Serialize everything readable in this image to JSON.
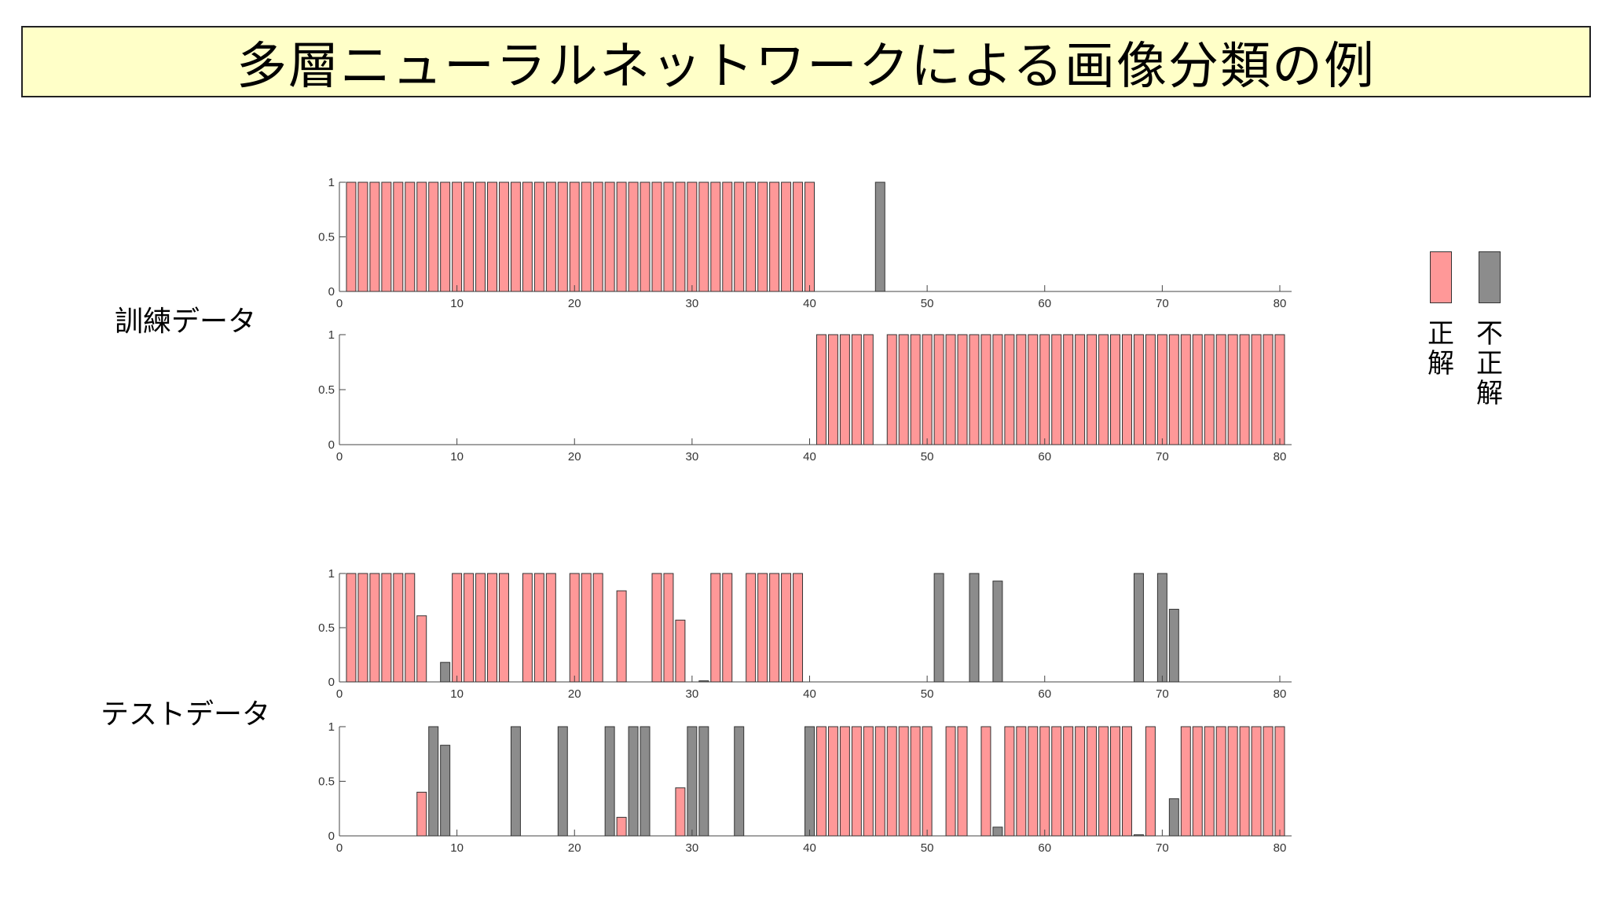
{
  "title": "多層ニューラルネットワークによる画像分類の例",
  "groups": {
    "train": "訓練データ",
    "test": "テストデータ"
  },
  "legend": {
    "correct": "正解",
    "incorrect": "不正解",
    "correct_color": "#ff9898",
    "incorrect_color": "#8c8c8c"
  },
  "chart_data": [
    {
      "type": "bar",
      "group": "訓練データ",
      "xlim": [
        0,
        81
      ],
      "ylim": [
        0,
        1
      ],
      "xticks": [
        0,
        10,
        20,
        30,
        40,
        50,
        60,
        70,
        80
      ],
      "yticks": [
        "0",
        "0.5",
        "1"
      ],
      "bars": [
        {
          "x": 1,
          "y": 1,
          "c": "correct"
        },
        {
          "x": 2,
          "y": 1,
          "c": "correct"
        },
        {
          "x": 3,
          "y": 1,
          "c": "correct"
        },
        {
          "x": 4,
          "y": 1,
          "c": "correct"
        },
        {
          "x": 5,
          "y": 1,
          "c": "correct"
        },
        {
          "x": 6,
          "y": 1,
          "c": "correct"
        },
        {
          "x": 7,
          "y": 1,
          "c": "correct"
        },
        {
          "x": 8,
          "y": 1,
          "c": "correct"
        },
        {
          "x": 9,
          "y": 1,
          "c": "correct"
        },
        {
          "x": 10,
          "y": 1,
          "c": "correct"
        },
        {
          "x": 11,
          "y": 1,
          "c": "correct"
        },
        {
          "x": 12,
          "y": 1,
          "c": "correct"
        },
        {
          "x": 13,
          "y": 1,
          "c": "correct"
        },
        {
          "x": 14,
          "y": 1,
          "c": "correct"
        },
        {
          "x": 15,
          "y": 1,
          "c": "correct"
        },
        {
          "x": 16,
          "y": 1,
          "c": "correct"
        },
        {
          "x": 17,
          "y": 1,
          "c": "correct"
        },
        {
          "x": 18,
          "y": 1,
          "c": "correct"
        },
        {
          "x": 19,
          "y": 1,
          "c": "correct"
        },
        {
          "x": 20,
          "y": 1,
          "c": "correct"
        },
        {
          "x": 21,
          "y": 1,
          "c": "correct"
        },
        {
          "x": 22,
          "y": 1,
          "c": "correct"
        },
        {
          "x": 23,
          "y": 1,
          "c": "correct"
        },
        {
          "x": 24,
          "y": 1,
          "c": "correct"
        },
        {
          "x": 25,
          "y": 1,
          "c": "correct"
        },
        {
          "x": 26,
          "y": 1,
          "c": "correct"
        },
        {
          "x": 27,
          "y": 1,
          "c": "correct"
        },
        {
          "x": 28,
          "y": 1,
          "c": "correct"
        },
        {
          "x": 29,
          "y": 1,
          "c": "correct"
        },
        {
          "x": 30,
          "y": 1,
          "c": "correct"
        },
        {
          "x": 31,
          "y": 1,
          "c": "correct"
        },
        {
          "x": 32,
          "y": 1,
          "c": "correct"
        },
        {
          "x": 33,
          "y": 1,
          "c": "correct"
        },
        {
          "x": 34,
          "y": 1,
          "c": "correct"
        },
        {
          "x": 35,
          "y": 1,
          "c": "correct"
        },
        {
          "x": 36,
          "y": 1,
          "c": "correct"
        },
        {
          "x": 37,
          "y": 1,
          "c": "correct"
        },
        {
          "x": 38,
          "y": 1,
          "c": "correct"
        },
        {
          "x": 39,
          "y": 1,
          "c": "correct"
        },
        {
          "x": 40,
          "y": 1,
          "c": "correct"
        },
        {
          "x": 46,
          "y": 1,
          "c": "incorrect"
        }
      ]
    },
    {
      "type": "bar",
      "group": "訓練データ",
      "xlim": [
        0,
        81
      ],
      "ylim": [
        0,
        1
      ],
      "xticks": [
        0,
        10,
        20,
        30,
        40,
        50,
        60,
        70,
        80
      ],
      "yticks": [
        "0",
        "0.5",
        "1"
      ],
      "bars": [
        {
          "x": 41,
          "y": 1,
          "c": "correct"
        },
        {
          "x": 42,
          "y": 1,
          "c": "correct"
        },
        {
          "x": 43,
          "y": 1,
          "c": "correct"
        },
        {
          "x": 44,
          "y": 1,
          "c": "correct"
        },
        {
          "x": 45,
          "y": 1,
          "c": "correct"
        },
        {
          "x": 47,
          "y": 1,
          "c": "correct"
        },
        {
          "x": 48,
          "y": 1,
          "c": "correct"
        },
        {
          "x": 49,
          "y": 1,
          "c": "correct"
        },
        {
          "x": 50,
          "y": 1,
          "c": "correct"
        },
        {
          "x": 51,
          "y": 1,
          "c": "correct"
        },
        {
          "x": 52,
          "y": 1,
          "c": "correct"
        },
        {
          "x": 53,
          "y": 1,
          "c": "correct"
        },
        {
          "x": 54,
          "y": 1,
          "c": "correct"
        },
        {
          "x": 55,
          "y": 1,
          "c": "correct"
        },
        {
          "x": 56,
          "y": 1,
          "c": "correct"
        },
        {
          "x": 57,
          "y": 1,
          "c": "correct"
        },
        {
          "x": 58,
          "y": 1,
          "c": "correct"
        },
        {
          "x": 59,
          "y": 1,
          "c": "correct"
        },
        {
          "x": 60,
          "y": 1,
          "c": "correct"
        },
        {
          "x": 61,
          "y": 1,
          "c": "correct"
        },
        {
          "x": 62,
          "y": 1,
          "c": "correct"
        },
        {
          "x": 63,
          "y": 1,
          "c": "correct"
        },
        {
          "x": 64,
          "y": 1,
          "c": "correct"
        },
        {
          "x": 65,
          "y": 1,
          "c": "correct"
        },
        {
          "x": 66,
          "y": 1,
          "c": "correct"
        },
        {
          "x": 67,
          "y": 1,
          "c": "correct"
        },
        {
          "x": 68,
          "y": 1,
          "c": "correct"
        },
        {
          "x": 69,
          "y": 1,
          "c": "correct"
        },
        {
          "x": 70,
          "y": 1,
          "c": "correct"
        },
        {
          "x": 71,
          "y": 1,
          "c": "correct"
        },
        {
          "x": 72,
          "y": 1,
          "c": "correct"
        },
        {
          "x": 73,
          "y": 1,
          "c": "correct"
        },
        {
          "x": 74,
          "y": 1,
          "c": "correct"
        },
        {
          "x": 75,
          "y": 1,
          "c": "correct"
        },
        {
          "x": 76,
          "y": 1,
          "c": "correct"
        },
        {
          "x": 77,
          "y": 1,
          "c": "correct"
        },
        {
          "x": 78,
          "y": 1,
          "c": "correct"
        },
        {
          "x": 79,
          "y": 1,
          "c": "correct"
        },
        {
          "x": 80,
          "y": 1,
          "c": "correct"
        }
      ]
    },
    {
      "type": "bar",
      "group": "テストデータ",
      "xlim": [
        0,
        81
      ],
      "ylim": [
        0,
        1
      ],
      "xticks": [
        0,
        10,
        20,
        30,
        40,
        50,
        60,
        70,
        80
      ],
      "yticks": [
        "0",
        "0.5",
        "1"
      ],
      "bars": [
        {
          "x": 1,
          "y": 1,
          "c": "correct"
        },
        {
          "x": 2,
          "y": 1,
          "c": "correct"
        },
        {
          "x": 3,
          "y": 1,
          "c": "correct"
        },
        {
          "x": 4,
          "y": 1,
          "c": "correct"
        },
        {
          "x": 5,
          "y": 1,
          "c": "correct"
        },
        {
          "x": 6,
          "y": 1,
          "c": "correct"
        },
        {
          "x": 7,
          "y": 0.61,
          "c": "correct"
        },
        {
          "x": 9,
          "y": 0.18,
          "c": "incorrect"
        },
        {
          "x": 10,
          "y": 1,
          "c": "correct"
        },
        {
          "x": 11,
          "y": 1,
          "c": "correct"
        },
        {
          "x": 12,
          "y": 1,
          "c": "correct"
        },
        {
          "x": 13,
          "y": 1,
          "c": "correct"
        },
        {
          "x": 14,
          "y": 1,
          "c": "correct"
        },
        {
          "x": 16,
          "y": 1,
          "c": "correct"
        },
        {
          "x": 17,
          "y": 1,
          "c": "correct"
        },
        {
          "x": 18,
          "y": 1,
          "c": "correct"
        },
        {
          "x": 20,
          "y": 1,
          "c": "correct"
        },
        {
          "x": 21,
          "y": 1,
          "c": "correct"
        },
        {
          "x": 22,
          "y": 1,
          "c": "correct"
        },
        {
          "x": 24,
          "y": 0.84,
          "c": "correct"
        },
        {
          "x": 27,
          "y": 1,
          "c": "correct"
        },
        {
          "x": 28,
          "y": 1,
          "c": "correct"
        },
        {
          "x": 29,
          "y": 0.57,
          "c": "correct"
        },
        {
          "x": 31,
          "y": 0.01,
          "c": "incorrect"
        },
        {
          "x": 32,
          "y": 1,
          "c": "correct"
        },
        {
          "x": 33,
          "y": 1,
          "c": "correct"
        },
        {
          "x": 35,
          "y": 1,
          "c": "correct"
        },
        {
          "x": 36,
          "y": 1,
          "c": "correct"
        },
        {
          "x": 37,
          "y": 1,
          "c": "correct"
        },
        {
          "x": 38,
          "y": 1,
          "c": "correct"
        },
        {
          "x": 39,
          "y": 1,
          "c": "correct"
        },
        {
          "x": 51,
          "y": 1,
          "c": "incorrect"
        },
        {
          "x": 54,
          "y": 1,
          "c": "incorrect"
        },
        {
          "x": 56,
          "y": 0.93,
          "c": "incorrect"
        },
        {
          "x": 68,
          "y": 1,
          "c": "incorrect"
        },
        {
          "x": 70,
          "y": 1,
          "c": "incorrect"
        },
        {
          "x": 71,
          "y": 0.67,
          "c": "incorrect"
        }
      ]
    },
    {
      "type": "bar",
      "group": "テストデータ",
      "xlim": [
        0,
        81
      ],
      "ylim": [
        0,
        1
      ],
      "xticks": [
        0,
        10,
        20,
        30,
        40,
        50,
        60,
        70,
        80
      ],
      "yticks": [
        "0",
        "0.5",
        "1"
      ],
      "bars": [
        {
          "x": 7,
          "y": 0.4,
          "c": "correct"
        },
        {
          "x": 8,
          "y": 1,
          "c": "incorrect"
        },
        {
          "x": 9,
          "y": 0.83,
          "c": "incorrect"
        },
        {
          "x": 15,
          "y": 1,
          "c": "incorrect"
        },
        {
          "x": 19,
          "y": 1,
          "c": "incorrect"
        },
        {
          "x": 23,
          "y": 1,
          "c": "incorrect"
        },
        {
          "x": 24,
          "y": 0.17,
          "c": "correct"
        },
        {
          "x": 25,
          "y": 1,
          "c": "incorrect"
        },
        {
          "x": 26,
          "y": 1,
          "c": "incorrect"
        },
        {
          "x": 29,
          "y": 0.44,
          "c": "correct"
        },
        {
          "x": 30,
          "y": 1,
          "c": "incorrect"
        },
        {
          "x": 31,
          "y": 1,
          "c": "incorrect"
        },
        {
          "x": 34,
          "y": 1,
          "c": "incorrect"
        },
        {
          "x": 40,
          "y": 1,
          "c": "incorrect"
        },
        {
          "x": 41,
          "y": 1,
          "c": "correct"
        },
        {
          "x": 42,
          "y": 1,
          "c": "correct"
        },
        {
          "x": 43,
          "y": 1,
          "c": "correct"
        },
        {
          "x": 44,
          "y": 1,
          "c": "correct"
        },
        {
          "x": 45,
          "y": 1,
          "c": "correct"
        },
        {
          "x": 46,
          "y": 1,
          "c": "correct"
        },
        {
          "x": 47,
          "y": 1,
          "c": "correct"
        },
        {
          "x": 48,
          "y": 1,
          "c": "correct"
        },
        {
          "x": 49,
          "y": 1,
          "c": "correct"
        },
        {
          "x": 50,
          "y": 1,
          "c": "correct"
        },
        {
          "x": 52,
          "y": 1,
          "c": "correct"
        },
        {
          "x": 53,
          "y": 1,
          "c": "correct"
        },
        {
          "x": 55,
          "y": 1,
          "c": "correct"
        },
        {
          "x": 56,
          "y": 0.08,
          "c": "incorrect"
        },
        {
          "x": 57,
          "y": 1,
          "c": "correct"
        },
        {
          "x": 58,
          "y": 1,
          "c": "correct"
        },
        {
          "x": 59,
          "y": 1,
          "c": "correct"
        },
        {
          "x": 60,
          "y": 1,
          "c": "correct"
        },
        {
          "x": 61,
          "y": 1,
          "c": "correct"
        },
        {
          "x": 62,
          "y": 1,
          "c": "correct"
        },
        {
          "x": 63,
          "y": 1,
          "c": "correct"
        },
        {
          "x": 64,
          "y": 1,
          "c": "correct"
        },
        {
          "x": 65,
          "y": 1,
          "c": "correct"
        },
        {
          "x": 66,
          "y": 1,
          "c": "correct"
        },
        {
          "x": 67,
          "y": 1,
          "c": "correct"
        },
        {
          "x": 68,
          "y": 0.01,
          "c": "incorrect"
        },
        {
          "x": 69,
          "y": 1,
          "c": "correct"
        },
        {
          "x": 71,
          "y": 0.34,
          "c": "incorrect"
        },
        {
          "x": 72,
          "y": 1,
          "c": "correct"
        },
        {
          "x": 73,
          "y": 1,
          "c": "correct"
        },
        {
          "x": 74,
          "y": 1,
          "c": "correct"
        },
        {
          "x": 75,
          "y": 1,
          "c": "correct"
        },
        {
          "x": 76,
          "y": 1,
          "c": "correct"
        },
        {
          "x": 77,
          "y": 1,
          "c": "correct"
        },
        {
          "x": 78,
          "y": 1,
          "c": "correct"
        },
        {
          "x": 79,
          "y": 1,
          "c": "correct"
        },
        {
          "x": 80,
          "y": 1,
          "c": "correct"
        }
      ]
    }
  ]
}
